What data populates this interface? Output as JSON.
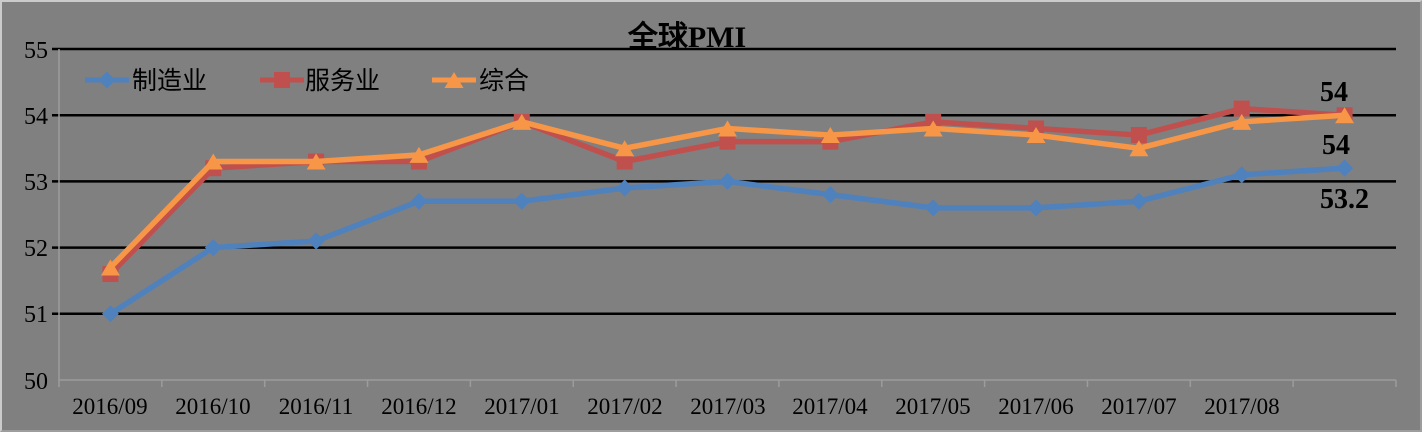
{
  "chart_title": "全球PMI",
  "colors": {
    "background": "#808080",
    "gridline": "#000000",
    "axis_line": "#9c9c9c",
    "text": "#000000",
    "manufacturing_blue": "#4F81BD",
    "services_red": "#C0504D",
    "composite_orange": "#F79646"
  },
  "legend": {
    "items": [
      {
        "label": "制造业",
        "marker": "diamond"
      },
      {
        "label": "服务业",
        "marker": "square"
      },
      {
        "label": "综合",
        "marker": "triangle"
      }
    ]
  },
  "chart_data": {
    "type": "line",
    "title": "全球PMI",
    "xlabel": "",
    "ylabel": "",
    "ylim": [
      50,
      55
    ],
    "yticks": [
      "55",
      "54",
      "53",
      "52",
      "51",
      "50"
    ],
    "grid": "horizontal-black-lines",
    "legend_position": "inside-top-left",
    "n_slots": 13,
    "x_labels": [
      "2016/09",
      "2016/10",
      "2016/11",
      "2016/12",
      "2017/01",
      "2017/02",
      "2017/03",
      "2017/04",
      "2017/05",
      "2017/06",
      "2017/07",
      "2017/08"
    ],
    "note": "13th data point (after 2017/08) has no x-axis label",
    "series": [
      {
        "name": "制造业",
        "marker": "diamond",
        "color": "#4F81BD",
        "values": [
          51.0,
          52.0,
          52.1,
          52.7,
          52.7,
          52.9,
          53.0,
          52.8,
          52.6,
          52.6,
          52.7,
          53.1,
          53.2
        ],
        "end_label": "53.2"
      },
      {
        "name": "服务业",
        "marker": "square",
        "color": "#C0504D",
        "values": [
          51.6,
          53.2,
          53.3,
          53.3,
          53.9,
          53.3,
          53.6,
          53.6,
          53.9,
          53.8,
          53.7,
          54.1,
          54.0
        ],
        "end_label": "54"
      },
      {
        "name": "综合",
        "marker": "triangle",
        "color": "#F79646",
        "values": [
          51.7,
          53.3,
          53.3,
          53.4,
          53.9,
          53.5,
          53.8,
          53.7,
          53.8,
          53.7,
          53.5,
          53.9,
          54.0
        ],
        "end_label": "54"
      }
    ]
  }
}
